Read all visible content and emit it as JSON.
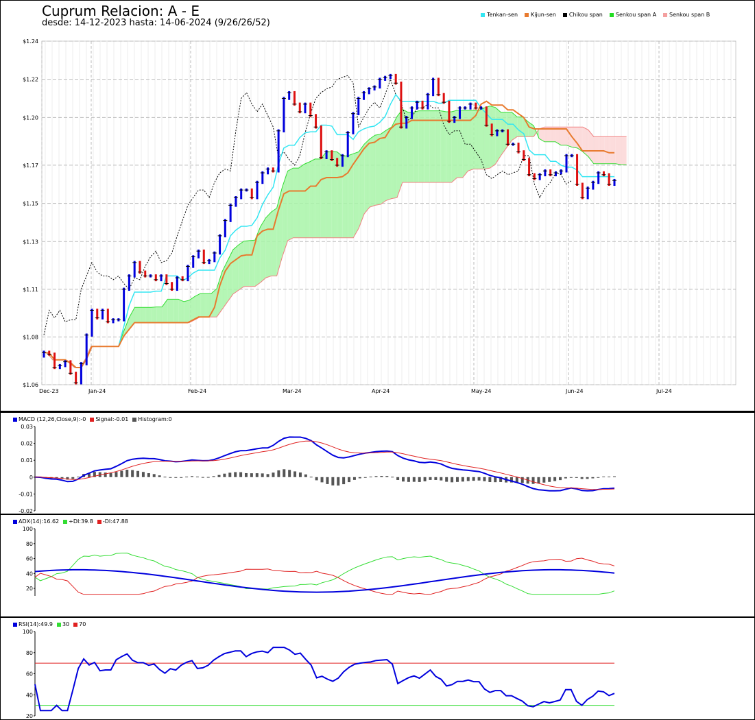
{
  "main": {
    "title": "Cuprum Relacion: A - E",
    "subtitle": "desde: 14-12-2023 hasta: 14-06-2024 (9/26/26/52)",
    "legend": [
      {
        "label": "Tenkan-sen",
        "color": "#33e6f2"
      },
      {
        "label": "Kijun-sen",
        "color": "#e87a2e"
      },
      {
        "label": "Chikou span",
        "color": "#000000"
      },
      {
        "label": "Senkou span A",
        "color": "#22dd22"
      },
      {
        "label": "Senkou span B",
        "color": "#f4a0a0"
      }
    ]
  },
  "macd": {
    "label": "MACD (12,26,Close,9):-0",
    "signal": "Signal:-0.01",
    "hist": "Histogram:0"
  },
  "adx": {
    "label": "ADX(14):16.62",
    "pdi": "+DI:39.8",
    "mdi": "-DI:47.88"
  },
  "rsi": {
    "label": "RSI(14):49.9",
    "l30": "30",
    "l70": "70"
  },
  "chart_data": [
    {
      "type": "candlestick",
      "title": "Cuprum Relacion: A - E",
      "y_ticks": [
        "$1.24",
        "$1.22",
        "$1.20",
        "$1.17",
        "$1.15",
        "$1.13",
        "$1.11",
        "$1.08",
        "$1.06"
      ],
      "y_tick_values": [
        1.24,
        1.22,
        1.2,
        1.175,
        1.155,
        1.135,
        1.11,
        1.085,
        1.06
      ],
      "ylim": [
        1.06,
        1.24
      ],
      "x_ticks": [
        "Dec-23",
        "Jan-24",
        "Feb-24",
        "Mar-24",
        "Apr-24",
        "May-24",
        "Jun-24",
        "Jul-24"
      ],
      "close": [
        1.077,
        1.076,
        1.069,
        1.07,
        1.072,
        1.066,
        1.061,
        1.071,
        1.086,
        1.099,
        1.095,
        1.099,
        1.093,
        1.094,
        1.094,
        1.11,
        1.117,
        1.124,
        1.119,
        1.117,
        1.117,
        1.115,
        1.117,
        1.113,
        1.11,
        1.116,
        1.115,
        1.122,
        1.127,
        1.13,
        1.124,
        1.125,
        1.129,
        1.138,
        1.146,
        1.154,
        1.158,
        1.162,
        1.162,
        1.158,
        1.166,
        1.171,
        1.173,
        1.172,
        1.193,
        1.21,
        1.213,
        1.207,
        1.203,
        1.207,
        1.201,
        1.195,
        1.179,
        1.182,
        1.178,
        1.175,
        1.18,
        1.192,
        1.202,
        1.21,
        1.213,
        1.215,
        1.216,
        1.22,
        1.221,
        1.222,
        1.218,
        1.195,
        1.2,
        1.205,
        1.208,
        1.205,
        1.212,
        1.22,
        1.212,
        1.208,
        1.198,
        1.2,
        1.205,
        1.205,
        1.207,
        1.205,
        1.205,
        1.196,
        1.191,
        1.193,
        1.193,
        1.186,
        1.186,
        1.182,
        1.178,
        1.17,
        1.168,
        1.17,
        1.172,
        1.17,
        1.171,
        1.172,
        1.18,
        1.18,
        1.165,
        1.158,
        1.163,
        1.166,
        1.171,
        1.17,
        1.165,
        1.167
      ]
    },
    {
      "type": "line",
      "name_label": "MACD",
      "y_ticks": [
        "0.03",
        "0.02",
        "0.01",
        "0",
        "-0.01",
        "-0.02"
      ],
      "y_tick_values": [
        0.03,
        0.02,
        0.01,
        0,
        -0.01,
        -0.02
      ],
      "ylim": [
        -0.02,
        0.03
      ]
    },
    {
      "type": "line",
      "name_label": "ADX",
      "y_ticks": [
        "100",
        "80",
        "60",
        "40",
        "20"
      ],
      "y_tick_values": [
        100,
        80,
        60,
        40,
        20
      ],
      "ylim": [
        10,
        100
      ]
    },
    {
      "type": "line",
      "name_label": "RSI",
      "y_ticks": [
        "100",
        "80",
        "60",
        "40",
        "20"
      ],
      "y_tick_values": [
        100,
        80,
        60,
        40,
        20
      ],
      "ylim": [
        20,
        100
      ]
    }
  ]
}
